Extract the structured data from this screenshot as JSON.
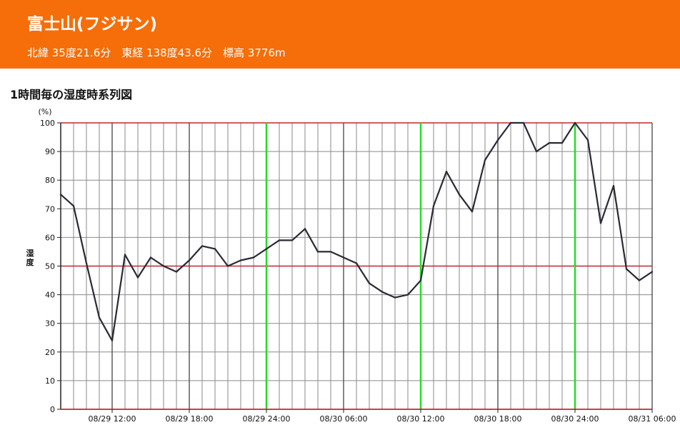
{
  "header": {
    "title": "富士山(フジサン)",
    "info": "北緯 35度21.6分　東経 138度43.6分　標高 3776m",
    "bg_color": "#F56E0A"
  },
  "chart_title": "1時間毎の湿度時系列図",
  "chart_data": {
    "type": "line",
    "title": "1時間毎の湿度時系列図",
    "ylabel": "湿度",
    "yunit": "(%)",
    "ylim": [
      0,
      100
    ],
    "yticks": [
      0,
      10,
      20,
      30,
      40,
      50,
      60,
      70,
      80,
      90,
      100
    ],
    "xlim": [
      "08/29 08:00",
      "08/31 06:00"
    ],
    "xtick_labels": [
      "08/29 12:00",
      "08/29 18:00",
      "08/29 24:00",
      "08/30 06:00",
      "08/30 12:00",
      "08/30 18:00",
      "08/30 24:00",
      "08/31 06:00"
    ],
    "grid": true,
    "reference_lines": {
      "red_horizontal": [
        50,
        100
      ],
      "green_vertical": [
        "08/29 24:00",
        "08/30 12:00",
        "08/30 24:00"
      ]
    },
    "x": [
      "08/29 08:00",
      "08/29 09:00",
      "08/29 10:00",
      "08/29 11:00",
      "08/29 12:00",
      "08/29 13:00",
      "08/29 14:00",
      "08/29 15:00",
      "08/29 16:00",
      "08/29 17:00",
      "08/29 18:00",
      "08/29 19:00",
      "08/29 20:00",
      "08/29 21:00",
      "08/29 22:00",
      "08/29 23:00",
      "08/29 24:00",
      "08/30 01:00",
      "08/30 02:00",
      "08/30 03:00",
      "08/30 04:00",
      "08/30 05:00",
      "08/30 06:00",
      "08/30 07:00",
      "08/30 08:00",
      "08/30 09:00",
      "08/30 10:00",
      "08/30 11:00",
      "08/30 12:00",
      "08/30 13:00",
      "08/30 14:00",
      "08/30 15:00",
      "08/30 16:00",
      "08/30 17:00",
      "08/30 18:00",
      "08/30 19:00",
      "08/30 20:00",
      "08/30 21:00",
      "08/30 22:00",
      "08/30 23:00",
      "08/30 24:00",
      "08/31 01:00",
      "08/31 02:00",
      "08/31 03:00",
      "08/31 04:00",
      "08/31 05:00",
      "08/31 06:00"
    ],
    "values": [
      75,
      71,
      51,
      32,
      24,
      54,
      46,
      53,
      50,
      48,
      52,
      57,
      56,
      50,
      52,
      53,
      56,
      59,
      59,
      63,
      55,
      55,
      53,
      51,
      44,
      41,
      39,
      40,
      45,
      71,
      83,
      75,
      69,
      87,
      94,
      100,
      100,
      90,
      93,
      93,
      100,
      94,
      65,
      78,
      49,
      45,
      48
    ],
    "line_color": "#2a2a36",
    "colors": {
      "reference_red": "#c0282a",
      "reference_green": "#22dd22",
      "grid": "#8a8a8a"
    }
  }
}
